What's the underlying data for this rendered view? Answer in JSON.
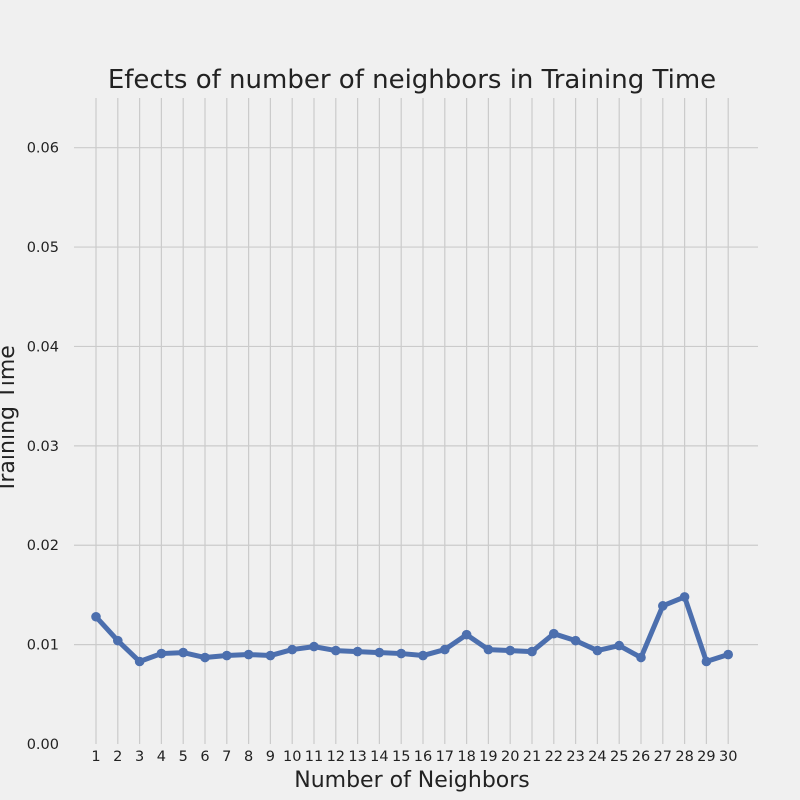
{
  "chart_data": {
    "type": "line",
    "title": "Efects of number of neighbors in Training Time",
    "xlabel": "Number of Neighbors",
    "ylabel": "Training Time",
    "x": [
      1,
      2,
      3,
      4,
      5,
      6,
      7,
      8,
      9,
      10,
      11,
      12,
      13,
      14,
      15,
      16,
      17,
      18,
      19,
      20,
      21,
      22,
      23,
      24,
      25,
      26,
      27,
      28,
      29,
      30
    ],
    "x_tick_labels": [
      "1",
      "2",
      "3",
      "4",
      "5",
      "6",
      "7",
      "8",
      "9",
      "10",
      "11",
      "12",
      "13",
      "14",
      "15",
      "16",
      "17",
      "18",
      "19",
      "20",
      "21",
      "22",
      "23",
      "24",
      "25",
      "26",
      "27",
      "28",
      "29",
      "30"
    ],
    "series": [
      {
        "values": [
          0.0128,
          0.0104,
          0.0083,
          0.0091,
          0.0092,
          0.0087,
          0.0089,
          0.009,
          0.0089,
          0.0095,
          0.0098,
          0.0094,
          0.0093,
          0.0092,
          0.0091,
          0.0089,
          0.0095,
          0.011,
          0.0095,
          0.0094,
          0.0093,
          0.0111,
          0.0104,
          0.0094,
          0.0099,
          0.0087,
          0.0139,
          0.0148,
          0.0083,
          0.009
        ],
        "color": "#4c6fae"
      }
    ],
    "ylim": [
      0.0,
      0.065
    ],
    "y_ticks": [
      0.0,
      0.01,
      0.02,
      0.03,
      0.04,
      0.05,
      0.06
    ],
    "y_tick_labels": [
      "0.00",
      "0.01",
      "0.02",
      "0.03",
      "0.04",
      "0.05",
      "0.06"
    ],
    "grid": true,
    "background_color": "#f0f0f0",
    "grid_color": "#cbcbcb"
  }
}
